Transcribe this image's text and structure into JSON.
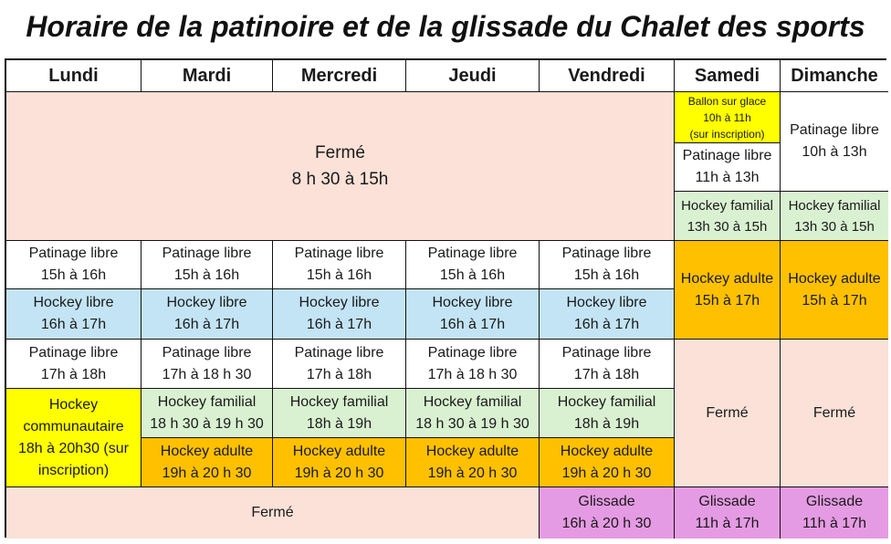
{
  "title": "Horaire de la patinoire et de la glissade du Chalet des sports",
  "days": [
    "Lundi",
    "Mardi",
    "Mercredi",
    "Jeudi",
    "Vendredi",
    "Samedi",
    "Dimanche"
  ],
  "closed_morning": {
    "l1": "Fermé",
    "l2": "8 h 30 à 15h"
  },
  "samedi": {
    "ballon": {
      "l1": "Ballon sur glace",
      "l2": "10h à 11h",
      "l3": "(sur inscription)"
    },
    "patinage": {
      "l1": "Patinage libre",
      "l2": "11h à 13h"
    },
    "familial": {
      "l1": "Hockey familial",
      "l2": "13h 30 à 15h"
    },
    "adulte": {
      "l1": "Hockey adulte",
      "l2": "15h à 17h"
    },
    "ferme": "Fermé",
    "glissade": {
      "l1": "Glissade",
      "l2": "11h à 17h"
    }
  },
  "dimanche": {
    "patinage": {
      "l1": "Patinage libre",
      "l2": "10h à 13h"
    },
    "familial": {
      "l1": "Hockey familial",
      "l2": "13h 30 à 15h"
    },
    "adulte": {
      "l1": "Hockey adulte",
      "l2": "15h à 17h"
    },
    "ferme": "Fermé",
    "glissade": {
      "l1": "Glissade",
      "l2": "11h à 17h"
    }
  },
  "weekday": {
    "patinage1": {
      "l1": "Patinage libre",
      "l2": "15h à 16h"
    },
    "hockey_libre": {
      "l1": "Hockey libre",
      "l2": "16h à 17h"
    },
    "patinage2": [
      {
        "l1": "Patinage libre",
        "l2": "17h à 18h"
      },
      {
        "l1": "Patinage libre",
        "l2": "17h à 18 h 30"
      },
      {
        "l1": "Patinage libre",
        "l2": "17h à 18h"
      },
      {
        "l1": "Patinage libre",
        "l2": "17h à 18 h 30"
      },
      {
        "l1": "Patinage libre",
        "l2": "17h à 18h"
      }
    ],
    "communautaire": {
      "l1": "Hockey",
      "l2": "communautaire",
      "l3": "18h à 20h30 (sur",
      "l4": "inscription)"
    },
    "familial": [
      {
        "l1": "Hockey familial",
        "l2": "18 h 30 à 19 h 30"
      },
      {
        "l1": "Hockey familial",
        "l2": "18h à 19h"
      },
      {
        "l1": "Hockey familial",
        "l2": "18 h 30 à 19 h 30"
      },
      {
        "l1": "Hockey familial",
        "l2": "18h à 19h"
      }
    ],
    "adulte": [
      {
        "l1": "Hockey adulte",
        "l2": "19h à 20 h 30"
      },
      {
        "l1": "Hockey adulte",
        "l2": "19h à 20 h 30"
      },
      {
        "l1": "Hockey adulte",
        "l2": "19h à 20 h 30"
      },
      {
        "l1": "Hockey adulte",
        "l2": "19h à 20 h 30"
      }
    ],
    "ferme_soir": "Fermé",
    "glissade_vendredi": {
      "l1": "Glissade",
      "l2": "16h à 20 h 30"
    }
  },
  "colors": {
    "ferme": "#fbe1d7",
    "hockey_libre": "#c3e4f5",
    "hockey_familial": "#d9f1d1",
    "hockey_adulte": "#ffc000",
    "ballon": "#ffff00",
    "glissade": "#e59be3"
  }
}
